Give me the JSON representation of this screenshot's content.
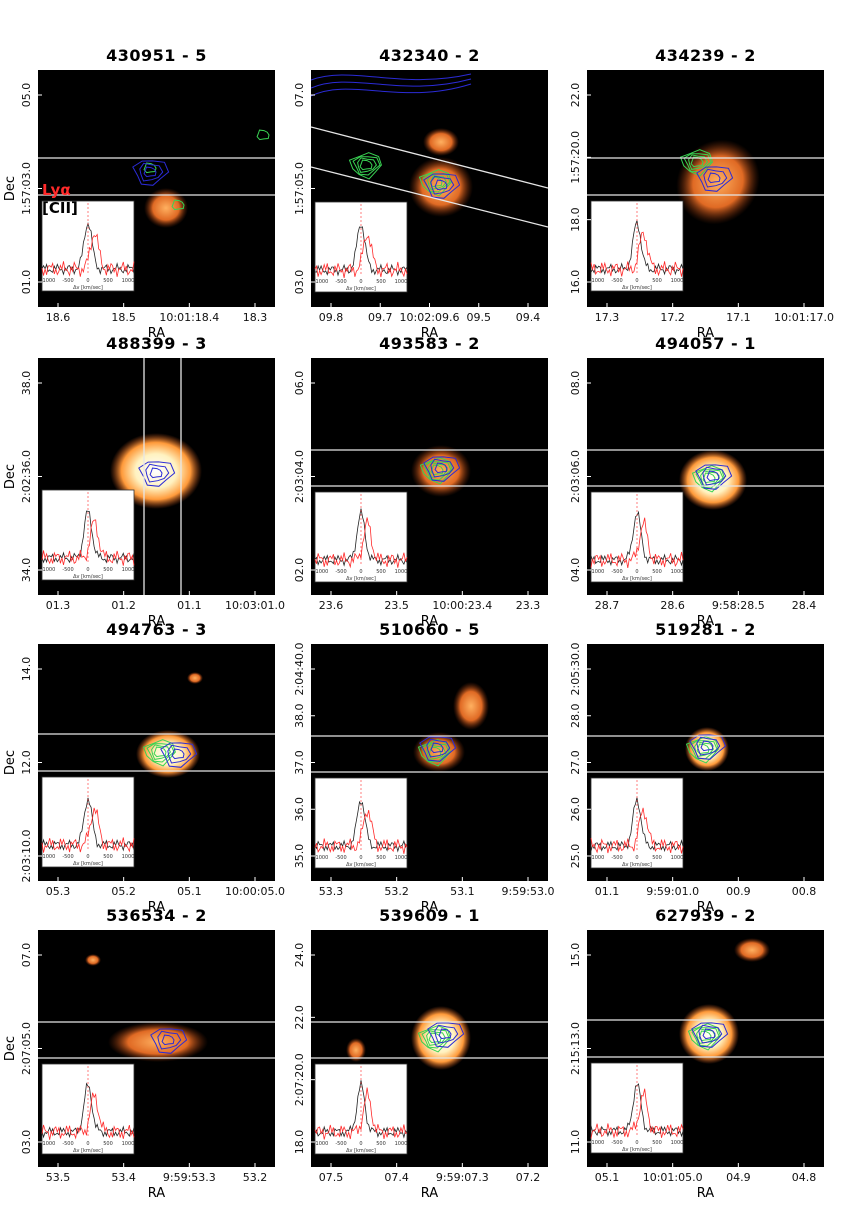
{
  "labels": {
    "ra": "RA",
    "dec": "Dec",
    "lya": "Lyα",
    "cii": "[CII]"
  },
  "inset": {
    "xticks": [
      "-1000",
      "-500",
      "0",
      "500",
      "1000"
    ],
    "xlabel": "Δv [km/sec]"
  },
  "colors": {
    "lya": "#ff2a2a",
    "cii": "#222222",
    "green": "#39d353",
    "blue": "#2b2bd6",
    "purple": "#7a2bd6"
  },
  "panels": [
    {
      "title": "430951 - 5",
      "yticks": [
        "05.0",
        "1:57:03.0",
        "01.0"
      ],
      "xticks": [
        "18.6",
        "18.5",
        "10:01:18.4",
        "18.3"
      ],
      "show_dec": true,
      "show_legend": true
    },
    {
      "title": "432340 - 2",
      "yticks": [
        "07.0",
        "1:57:05.0",
        "03.0"
      ],
      "xticks": [
        "09.8",
        "09.7",
        "10:02:09.6",
        "09.5",
        "09.4"
      ],
      "show_dec": false,
      "show_legend": false
    },
    {
      "title": "434239 - 2",
      "yticks": [
        "22.0",
        "1:57:20.0",
        "18.0",
        "16.0"
      ],
      "xticks": [
        "17.3",
        "17.2",
        "17.1",
        "10:01:17.0"
      ],
      "show_dec": false,
      "show_legend": false
    },
    {
      "title": "488399 - 3",
      "yticks": [
        "38.0",
        "2:02:36.0",
        "34.0"
      ],
      "xticks": [
        "01.3",
        "01.2",
        "01.1",
        "10:03:01.0"
      ],
      "show_dec": true,
      "show_legend": false
    },
    {
      "title": "493583 - 2",
      "yticks": [
        "06.0",
        "2:03:04.0",
        "02.0"
      ],
      "xticks": [
        "23.6",
        "23.5",
        "10:00:23.4",
        "23.3"
      ],
      "show_dec": false,
      "show_legend": false
    },
    {
      "title": "494057 - 1",
      "yticks": [
        "08.0",
        "2:03:06.0",
        "04.0"
      ],
      "xticks": [
        "28.7",
        "28.6",
        "9:58:28.5",
        "28.4"
      ],
      "show_dec": false,
      "show_legend": false
    },
    {
      "title": "494763 - 3",
      "yticks": [
        "14.0",
        "12.0",
        "2:03:10.0"
      ],
      "xticks": [
        "05.3",
        "05.2",
        "05.1",
        "10:00:05.0"
      ],
      "show_dec": true,
      "show_legend": false
    },
    {
      "title": "510660 - 5",
      "yticks": [
        "2:04:40.0",
        "38.0",
        "37.0",
        "36.0",
        "35.0"
      ],
      "xticks": [
        "53.3",
        "53.2",
        "53.1",
        "9:59:53.0"
      ],
      "show_dec": false,
      "show_legend": false
    },
    {
      "title": "519281 - 2",
      "yticks": [
        "2:05:30.0",
        "28.0",
        "27.0",
        "26.0",
        "25.0"
      ],
      "xticks": [
        "01.1",
        "9:59:01.0",
        "00.9",
        "00.8"
      ],
      "show_dec": false,
      "show_legend": false
    },
    {
      "title": "536534 - 2",
      "yticks": [
        "07.0",
        "2:07:05.0",
        "03.0"
      ],
      "xticks": [
        "53.5",
        "53.4",
        "9:59:53.3",
        "53.2"
      ],
      "show_dec": true,
      "show_legend": false
    },
    {
      "title": "539609 - 1",
      "yticks": [
        "24.0",
        "22.0",
        "2:07:20.0",
        "18.0"
      ],
      "xticks": [
        "07.5",
        "07.4",
        "9:59:07.3",
        "07.2"
      ],
      "show_dec": false,
      "show_legend": false
    },
    {
      "title": "627939 - 2",
      "yticks": [
        "15.0",
        "2:15:13.0",
        "11.0"
      ],
      "xticks": [
        "05.1",
        "10:01:05.0",
        "04.9",
        "04.8"
      ],
      "show_dec": false,
      "show_legend": false
    }
  ]
}
